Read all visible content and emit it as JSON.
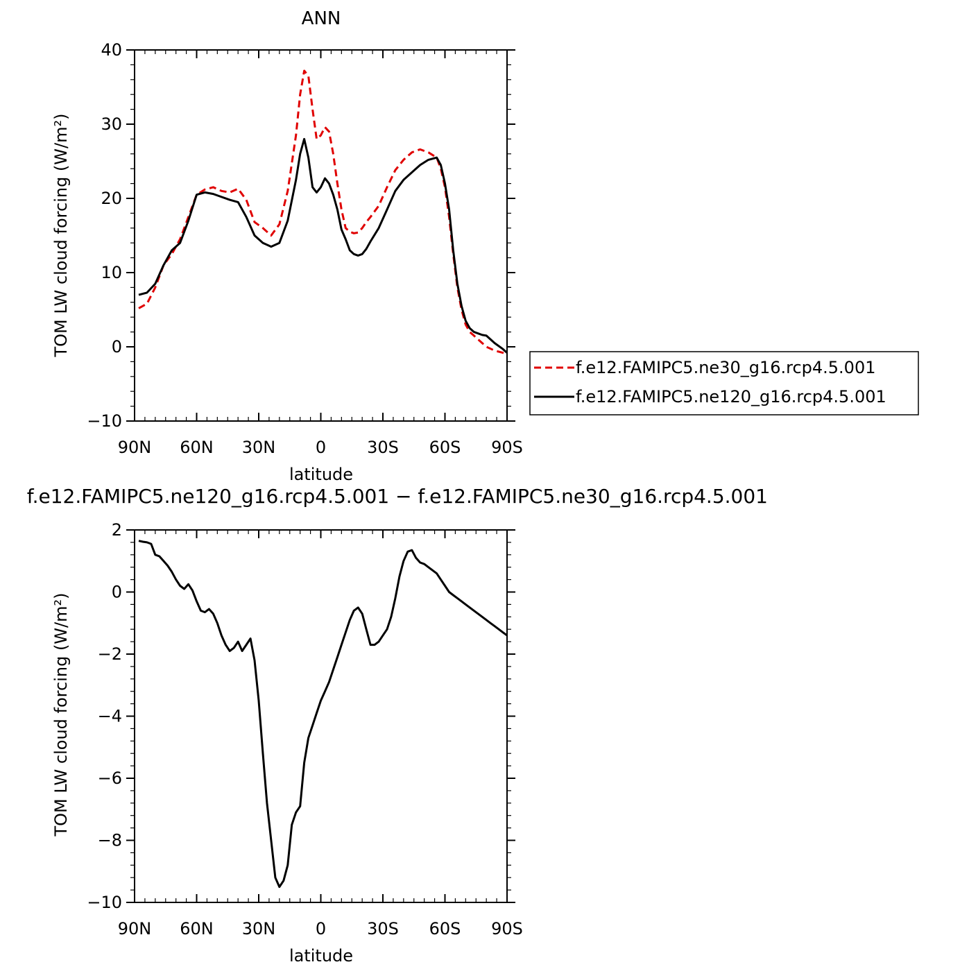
{
  "chart_data": [
    {
      "type": "line",
      "title": "ANN",
      "xlabel": "latitude",
      "ylabel": "TOM LW cloud forcing (W/m²)",
      "xlim": [
        90,
        -90
      ],
      "ylim": [
        -10,
        40
      ],
      "x_ticks": [
        {
          "value": 90,
          "label": "90N"
        },
        {
          "value": 60,
          "label": "60N"
        },
        {
          "value": 30,
          "label": "30N"
        },
        {
          "value": 0,
          "label": "0"
        },
        {
          "value": -30,
          "label": "30S"
        },
        {
          "value": -60,
          "label": "60S"
        },
        {
          "value": -90,
          "label": "90S"
        }
      ],
      "y_ticks": [
        {
          "value": 40,
          "label": "40"
        },
        {
          "value": 30,
          "label": "30"
        },
        {
          "value": 20,
          "label": "20"
        },
        {
          "value": 10,
          "label": "10"
        },
        {
          "value": 0,
          "label": "0"
        },
        {
          "value": -10,
          "label": "-10"
        }
      ],
      "legend_position": "right",
      "series": [
        {
          "name": "f.e12.FAMIPC5.ne30_g16.rcp4.5.001",
          "color": "#e00000",
          "dash": "dashed",
          "x": [
            88,
            84,
            80,
            76,
            72,
            68,
            64,
            60,
            56,
            52,
            48,
            44,
            40,
            36,
            32,
            28,
            24,
            20,
            16,
            12,
            10,
            8,
            6,
            4,
            2,
            0,
            -2,
            -4,
            -6,
            -8,
            -10,
            -12,
            -14,
            -16,
            -18,
            -20,
            -22,
            -24,
            -28,
            -32,
            -36,
            -40,
            -44,
            -48,
            -52,
            -56,
            -58,
            -60,
            -62,
            -64,
            -66,
            -68,
            -70,
            -72,
            -74,
            -76,
            -78,
            -80,
            -84,
            -88,
            -90
          ],
          "y": [
            5.2,
            5.8,
            8.0,
            11.0,
            12.5,
            14.5,
            17.5,
            20.5,
            21.2,
            21.5,
            21.0,
            20.8,
            21.3,
            19.8,
            16.8,
            16.0,
            15.0,
            16.5,
            21.0,
            28.5,
            34.0,
            37.2,
            36.5,
            32.0,
            28.0,
            28.5,
            29.6,
            29.0,
            26.0,
            22.0,
            18.5,
            16.0,
            15.5,
            15.3,
            15.4,
            16.0,
            16.8,
            17.5,
            19.0,
            21.5,
            23.8,
            25.2,
            26.2,
            26.6,
            26.2,
            25.5,
            24.0,
            21.5,
            17.5,
            12.5,
            8.0,
            5.0,
            3.0,
            2.0,
            1.5,
            1.0,
            0.5,
            0.0,
            -0.5,
            -0.8,
            -1.0
          ]
        },
        {
          "name": "f.e12.FAMIPC5.ne120_g16.rcp4.5.001",
          "color": "#000000",
          "dash": "solid",
          "x": [
            88,
            84,
            80,
            76,
            72,
            68,
            64,
            60,
            56,
            52,
            48,
            44,
            40,
            36,
            32,
            28,
            24,
            20,
            16,
            12,
            10,
            8,
            6,
            4,
            2,
            0,
            -2,
            -4,
            -6,
            -8,
            -10,
            -12,
            -14,
            -16,
            -18,
            -20,
            -22,
            -24,
            -28,
            -32,
            -36,
            -40,
            -44,
            -48,
            -52,
            -56,
            -58,
            -60,
            -62,
            -64,
            -66,
            -68,
            -70,
            -72,
            -74,
            -76,
            -78,
            -80,
            -84,
            -88,
            -90
          ],
          "y": [
            7.0,
            7.3,
            8.5,
            11.0,
            13.0,
            14.0,
            17.0,
            20.5,
            20.8,
            20.6,
            20.2,
            19.8,
            19.5,
            17.5,
            15.0,
            14.0,
            13.5,
            14.0,
            17.0,
            22.5,
            26.0,
            28.0,
            25.5,
            21.5,
            20.8,
            21.5,
            22.7,
            22.0,
            20.5,
            18.5,
            15.8,
            14.5,
            13.0,
            12.5,
            12.3,
            12.5,
            13.2,
            14.2,
            16.0,
            18.5,
            21.0,
            22.5,
            23.5,
            24.5,
            25.2,
            25.5,
            24.5,
            22.0,
            18.5,
            13.0,
            8.5,
            5.5,
            3.5,
            2.5,
            2.0,
            1.8,
            1.6,
            1.5,
            0.5,
            -0.3,
            -0.8
          ]
        }
      ]
    },
    {
      "type": "line",
      "title": "f.e12.FAMIPC5.ne120_g16.rcp4.5.001 − f.e12.FAMIPC5.ne30_g16.rcp4.5.001",
      "xlabel": "latitude",
      "ylabel": "TOM LW cloud forcing (W/m²)",
      "xlim": [
        90,
        -90
      ],
      "ylim": [
        -10,
        2
      ],
      "x_ticks": [
        {
          "value": 90,
          "label": "90N"
        },
        {
          "value": 60,
          "label": "60N"
        },
        {
          "value": 30,
          "label": "30N"
        },
        {
          "value": 0,
          "label": "0"
        },
        {
          "value": -30,
          "label": "30S"
        },
        {
          "value": -60,
          "label": "60S"
        },
        {
          "value": -90,
          "label": "90S"
        }
      ],
      "y_ticks": [
        {
          "value": 2,
          "label": "2"
        },
        {
          "value": 0,
          "label": "0"
        },
        {
          "value": -2,
          "label": "-2"
        },
        {
          "value": -4,
          "label": "-4"
        },
        {
          "value": -6,
          "label": "-6"
        },
        {
          "value": -8,
          "label": "-8"
        },
        {
          "value": -10,
          "label": "-10"
        }
      ],
      "series": [
        {
          "color": "#000000",
          "dash": "solid",
          "x": [
            88,
            86,
            84,
            82,
            80,
            78,
            76,
            74,
            72,
            70,
            68,
            66,
            64,
            62,
            60,
            58,
            56,
            54,
            52,
            50,
            48,
            46,
            44,
            42,
            40,
            38,
            36,
            34,
            32,
            30,
            28,
            26,
            24,
            22,
            20,
            18,
            16,
            14,
            12,
            10,
            8,
            6,
            4,
            2,
            0,
            -2,
            -4,
            -6,
            -8,
            -10,
            -12,
            -14,
            -16,
            -18,
            -20,
            -22,
            -24,
            -26,
            -28,
            -30,
            -32,
            -34,
            -36,
            -38,
            -40,
            -42,
            -44,
            -46,
            -48,
            -50,
            -52,
            -54,
            -56,
            -58,
            -60,
            -62,
            -64,
            -66,
            -68,
            -70,
            -72,
            -74,
            -76,
            -78,
            -80,
            -82,
            -84,
            -86,
            -88,
            -90
          ],
          "y": [
            1.65,
            1.62,
            1.6,
            1.55,
            1.2,
            1.15,
            1.0,
            0.85,
            0.65,
            0.4,
            0.2,
            0.1,
            0.25,
            0.05,
            -0.3,
            -0.6,
            -0.65,
            -0.55,
            -0.7,
            -1.0,
            -1.4,
            -1.7,
            -1.9,
            -1.8,
            -1.6,
            -1.9,
            -1.7,
            -1.5,
            -2.2,
            -3.5,
            -5.2,
            -6.8,
            -8.0,
            -9.2,
            -9.5,
            -9.3,
            -8.8,
            -7.5,
            -7.1,
            -6.9,
            -5.5,
            -4.7,
            -4.3,
            -3.9,
            -3.5,
            -3.2,
            -2.9,
            -2.5,
            -2.1,
            -1.7,
            -1.3,
            -0.9,
            -0.6,
            -0.5,
            -0.7,
            -1.2,
            -1.7,
            -1.7,
            -1.6,
            -1.4,
            -1.2,
            -0.8,
            -0.2,
            0.5,
            1.0,
            1.3,
            1.35,
            1.1,
            0.95,
            0.9,
            0.8,
            0.7,
            0.6,
            0.4,
            0.2,
            0.0,
            -0.1,
            -0.2,
            -0.3,
            -0.4,
            -0.5,
            -0.6,
            -0.7,
            -0.8,
            -0.9,
            -1.0,
            -1.1,
            -1.2,
            -1.3,
            -1.4
          ]
        }
      ]
    }
  ]
}
